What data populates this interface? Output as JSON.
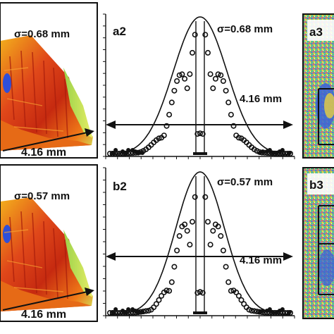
{
  "panels": {
    "a1": {
      "sigma_label": "σ=0.68 mm",
      "width_label": "4.16 mm"
    },
    "a2": {
      "panel_label": "a2",
      "sigma_label": "σ=0.68 mm",
      "width_label": "4.16 mm"
    },
    "a3": {
      "panel_label": "a3"
    },
    "b1": {
      "sigma_label": "σ=0.57 mm",
      "width_label": "4.16 mm"
    },
    "b2": {
      "panel_label": "b2",
      "sigma_label": "σ=0.57 mm",
      "width_label": "4.16 mm"
    },
    "b3": {
      "panel_label": "b3"
    }
  },
  "colors": {
    "surface_peak": "#c62a10",
    "surface_mid": "#f07a18",
    "surface_low": "#d8e84a",
    "surface_dip": "#2e4fd8",
    "ink": "#111111"
  }
}
